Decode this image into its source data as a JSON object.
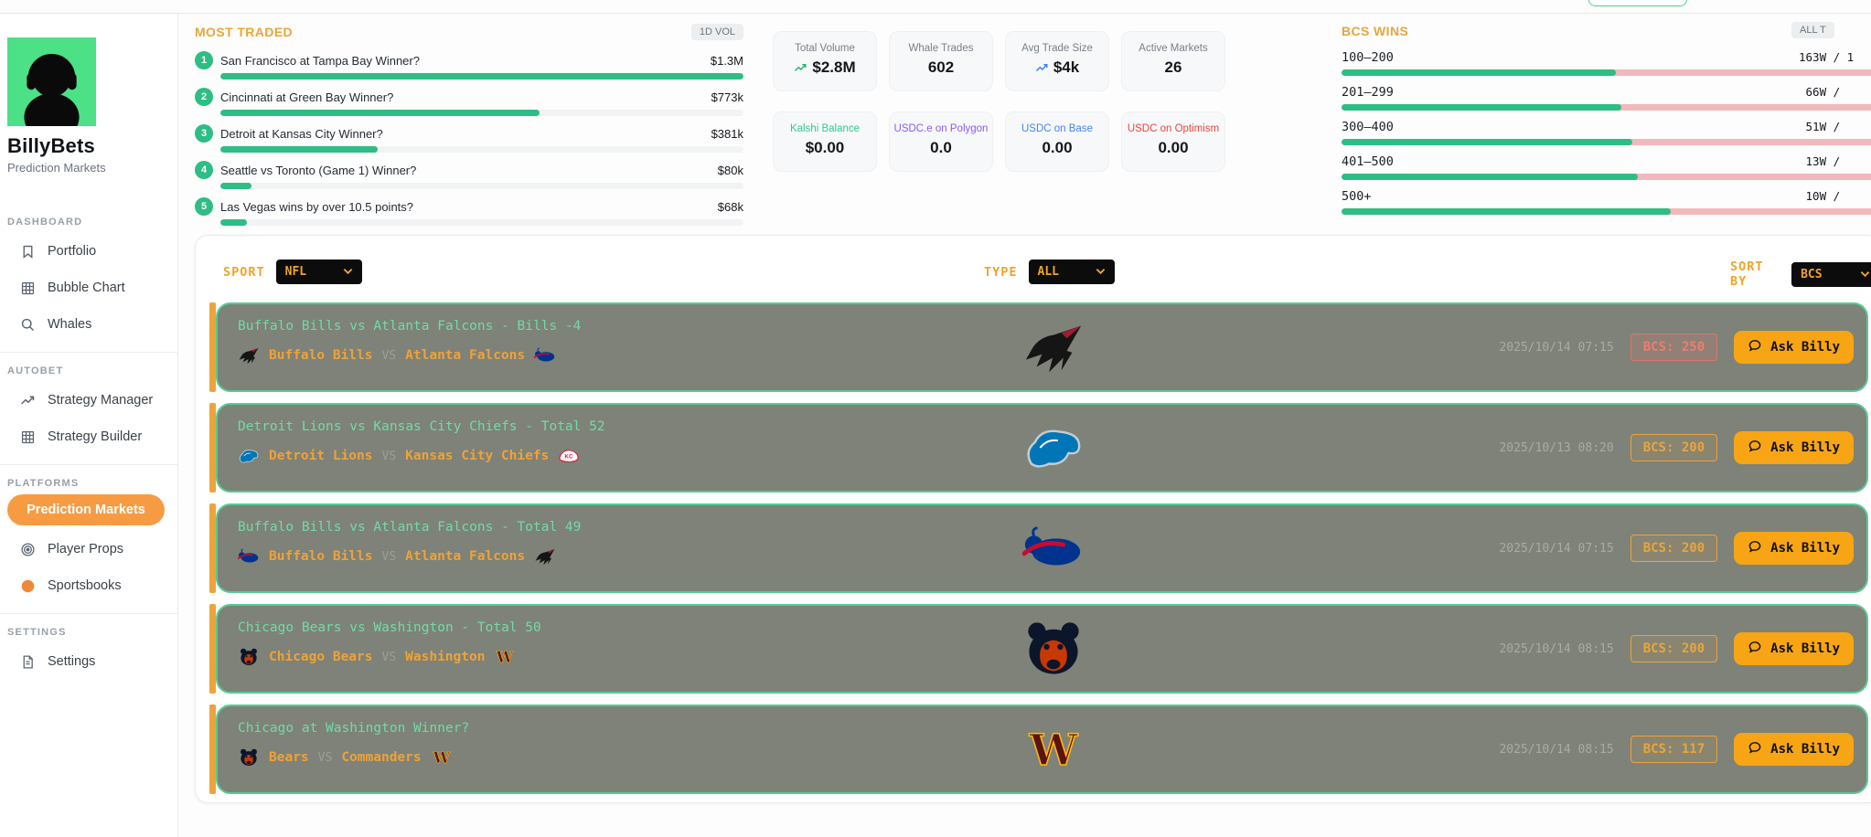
{
  "labels": {
    "vs": "VS",
    "ask": "Ask Billy"
  },
  "colors": {
    "accent_orange": "#F0A32A",
    "green": "#2EBD85",
    "bar_pink": "#F2B9BC",
    "market_card_bg": "#7E8278",
    "market_card_border": "#56CB93",
    "market_title_green": "#72DBA6",
    "team_orange": "#F0A236",
    "ask_button_bg": "#F7A514",
    "bcs_badge_red": "#E4736B",
    "bcs_badge_orange": "#EDA33C",
    "sidebar_active_bg": "#F79B42",
    "avatar_green": "#4CE087"
  },
  "sidebar": {
    "brand": {
      "name": "BillyBets",
      "subtitle": "Prediction Markets",
      "avatar_icon": "headphones-person-avatar"
    },
    "sections": [
      {
        "label": "DASHBOARD",
        "items": [
          {
            "label": "Portfolio",
            "icon": "bookmark-icon"
          },
          {
            "label": "Bubble Chart",
            "icon": "grid-icon"
          },
          {
            "label": "Whales",
            "icon": "search-icon"
          }
        ]
      },
      {
        "label": "AUTOBET",
        "items": [
          {
            "label": "Strategy Manager",
            "icon": "trend-up-icon"
          },
          {
            "label": "Strategy Builder",
            "icon": "grid-icon"
          }
        ]
      },
      {
        "label": "PLATFORMS",
        "items": [
          {
            "label": "Prediction Markets",
            "icon": null,
            "active": true
          },
          {
            "label": "Player Props",
            "icon": "target-icon"
          },
          {
            "label": "Sportsbooks",
            "icon": "orange-dot-icon"
          }
        ]
      },
      {
        "label": "SETTINGS",
        "items": [
          {
            "label": "Settings",
            "icon": "file-icon"
          }
        ]
      }
    ]
  },
  "most_traded": {
    "title": "MOST TRADED",
    "badge": "1D VOL",
    "items": [
      {
        "rank": "1",
        "label": "San Francisco at Tampa Bay Winner?",
        "value": "$1.3M",
        "pct": 100
      },
      {
        "rank": "2",
        "label": "Cincinnati at Green Bay Winner?",
        "value": "$773k",
        "pct": 61
      },
      {
        "rank": "3",
        "label": "Detroit at Kansas City Winner?",
        "value": "$381k",
        "pct": 30
      },
      {
        "rank": "4",
        "label": "Seattle vs Toronto (Game 1) Winner?",
        "value": "$80k",
        "pct": 6
      },
      {
        "rank": "5",
        "label": "Las Vegas wins by over 10.5 points?",
        "value": "$68k",
        "pct": 5
      }
    ]
  },
  "stats": {
    "cards": [
      {
        "label": "Total Volume",
        "value": "$2.8M",
        "trend_icon": "trend-up-icon",
        "trend_color": "#22B573"
      },
      {
        "label": "Whale Trades",
        "value": "602"
      },
      {
        "label": "Avg Trade Size",
        "value": "$4k",
        "trend_icon": "trend-up-icon",
        "trend_color": "#3B82F6"
      },
      {
        "label": "Active Markets",
        "value": "26"
      },
      {
        "label": "Kalshi Balance",
        "value": "$0.00",
        "label_color": "#2FCC8B"
      },
      {
        "label": "USDC.e on Polygon",
        "value": "0.0",
        "label_color": "#8B5CF6"
      },
      {
        "label": "USDC on Base",
        "value": "0.00",
        "label_color": "#4285F4"
      },
      {
        "label": "USDC on Optimism",
        "value": "0.00",
        "label_color": "#EF4444"
      }
    ]
  },
  "bcs_wins": {
    "title": "BCS WINS",
    "badge": "ALL T",
    "rows": [
      {
        "range": "100–200",
        "record": "163W / 1",
        "green_pct": 50
      },
      {
        "range": "201–299",
        "record": " 66W /",
        "green_pct": 51
      },
      {
        "range": "300–400",
        "record": " 51W /",
        "green_pct": 53
      },
      {
        "range": "401–500",
        "record": " 13W /",
        "green_pct": 54
      },
      {
        "range": "500+",
        "record": " 10W /",
        "green_pct": 60
      }
    ]
  },
  "filters": {
    "sport": {
      "label": "SPORT",
      "value": "NFL"
    },
    "type": {
      "label": "TYPE",
      "value": "ALL"
    },
    "sort": {
      "label": "SORT BY",
      "value": "BCS"
    }
  },
  "markets": [
    {
      "title": "Buffalo Bills vs Atlanta Falcons - Bills -4",
      "team1": "Buffalo Bills",
      "team2": "Atlanta Falcons",
      "left_logo": "falcons",
      "right_logo": "bills",
      "center_logo": "falcons",
      "date": "2025/10/14 07:15",
      "bcs": "BCS: 250",
      "bcs_style": "red"
    },
    {
      "title": "Detroit Lions vs Kansas City Chiefs - Total 52",
      "team1": "Detroit Lions",
      "team2": "Kansas City Chiefs",
      "left_logo": "lions",
      "right_logo": "chiefs",
      "center_logo": "lions",
      "date": "2025/10/13 08:20",
      "bcs": "BCS: 200",
      "bcs_style": "orange"
    },
    {
      "title": "Buffalo Bills vs Atlanta Falcons - Total 49",
      "team1": "Buffalo Bills",
      "team2": "Atlanta Falcons",
      "left_logo": "bills",
      "right_logo": "falcons",
      "center_logo": "bills",
      "date": "2025/10/14 07:15",
      "bcs": "BCS: 200",
      "bcs_style": "orange"
    },
    {
      "title": "Chicago Bears vs Washington - Total 50",
      "team1": "Chicago Bears",
      "team2": "Washington",
      "left_logo": "bears",
      "right_logo": "commanders",
      "center_logo": "bears",
      "date": "2025/10/14 08:15",
      "bcs": "BCS: 200",
      "bcs_style": "orange"
    },
    {
      "title": "Chicago at Washington Winner?",
      "team1": "Bears",
      "team2": "Commanders",
      "left_logo": "bears",
      "right_logo": "commanders",
      "center_logo": "commanders",
      "date": "2025/10/14 08:15",
      "bcs": "BCS: 117",
      "bcs_style": "orange"
    }
  ]
}
